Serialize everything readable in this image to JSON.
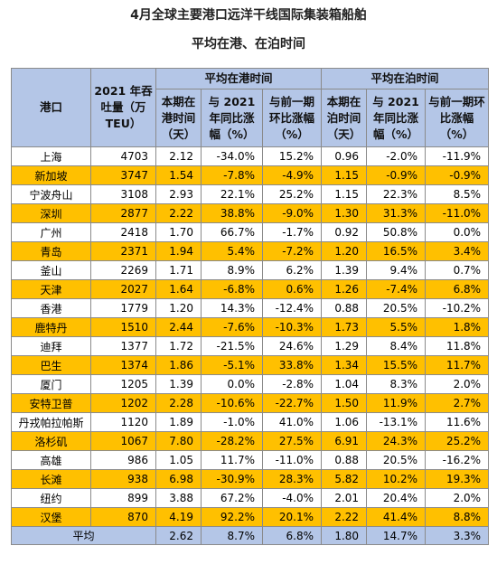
{
  "title": [
    "4月全球主要港口远洋干线国际集装箱船舶",
    "平均在港、在泊时间"
  ],
  "table": {
    "header": {
      "port": "港口",
      "teu": "2021 年吞吐量（万 TEU）",
      "group_port": "平均在港时间",
      "group_berth": "平均在泊时间",
      "sub": [
        "本期在港时间（天）",
        "与 2021 年同比涨幅（%）",
        "与前一期环比涨幅（%）",
        "本期在泊时间（天）",
        "与 2021 年同比涨幅（%）",
        "与前一期环比涨幅（%）"
      ]
    },
    "rows": [
      [
        "上海",
        "4703",
        "2.12",
        "-34.0%",
        "15.2%",
        "0.96",
        "-2.0%",
        "-11.9%"
      ],
      [
        "新加坡",
        "3747",
        "1.54",
        "-7.8%",
        "-4.9%",
        "1.15",
        "-0.9%",
        "-0.9%"
      ],
      [
        "宁波舟山",
        "3108",
        "2.93",
        "22.1%",
        "25.2%",
        "1.15",
        "22.3%",
        "8.5%"
      ],
      [
        "深圳",
        "2877",
        "2.22",
        "38.8%",
        "-9.0%",
        "1.30",
        "31.3%",
        "-11.0%"
      ],
      [
        "广州",
        "2418",
        "1.70",
        "66.7%",
        "-1.7%",
        "0.92",
        "50.8%",
        "0.0%"
      ],
      [
        "青岛",
        "2371",
        "1.94",
        "5.4%",
        "-7.2%",
        "1.20",
        "16.5%",
        "3.4%"
      ],
      [
        "釜山",
        "2269",
        "1.71",
        "8.9%",
        "6.2%",
        "1.39",
        "9.4%",
        "0.7%"
      ],
      [
        "天津",
        "2027",
        "1.64",
        "-6.8%",
        "0.6%",
        "1.26",
        "-7.4%",
        "6.8%"
      ],
      [
        "香港",
        "1779",
        "1.20",
        "14.3%",
        "-12.4%",
        "0.88",
        "20.5%",
        "-10.2%"
      ],
      [
        "鹿特丹",
        "1510",
        "2.44",
        "-7.6%",
        "-10.3%",
        "1.73",
        "5.5%",
        "1.8%"
      ],
      [
        "迪拜",
        "1377",
        "1.72",
        "-21.5%",
        "24.6%",
        "1.29",
        "8.4%",
        "11.8%"
      ],
      [
        "巴生",
        "1374",
        "1.86",
        "-5.1%",
        "33.8%",
        "1.34",
        "15.5%",
        "11.7%"
      ],
      [
        "厦门",
        "1205",
        "1.39",
        "0.0%",
        "-2.8%",
        "1.04",
        "8.3%",
        "2.0%"
      ],
      [
        "安特卫普",
        "1202",
        "2.28",
        "-10.6%",
        "-22.7%",
        "1.50",
        "11.9%",
        "2.7%"
      ],
      [
        "丹戎帕拉帕斯",
        "1120",
        "1.89",
        "-1.0%",
        "41.0%",
        "1.06",
        "-13.1%",
        "11.6%"
      ],
      [
        "洛杉矶",
        "1067",
        "7.80",
        "-28.2%",
        "27.5%",
        "6.91",
        "24.3%",
        "25.2%"
      ],
      [
        "高雄",
        "986",
        "1.05",
        "11.7%",
        "-11.0%",
        "0.88",
        "20.5%",
        "-16.2%"
      ],
      [
        "长滩",
        "938",
        "6.98",
        "-30.9%",
        "28.3%",
        "5.82",
        "10.2%",
        "19.3%"
      ],
      [
        "纽约",
        "899",
        "3.88",
        "67.2%",
        "-4.0%",
        "2.01",
        "20.4%",
        "2.0%"
      ],
      [
        "汉堡",
        "870",
        "4.19",
        "92.2%",
        "20.1%",
        "2.22",
        "41.4%",
        "8.8%"
      ]
    ],
    "average": {
      "label": "平均",
      "values": [
        "2.62",
        "8.7%",
        "6.8%",
        "1.80",
        "14.7%",
        "3.3%"
      ]
    }
  }
}
